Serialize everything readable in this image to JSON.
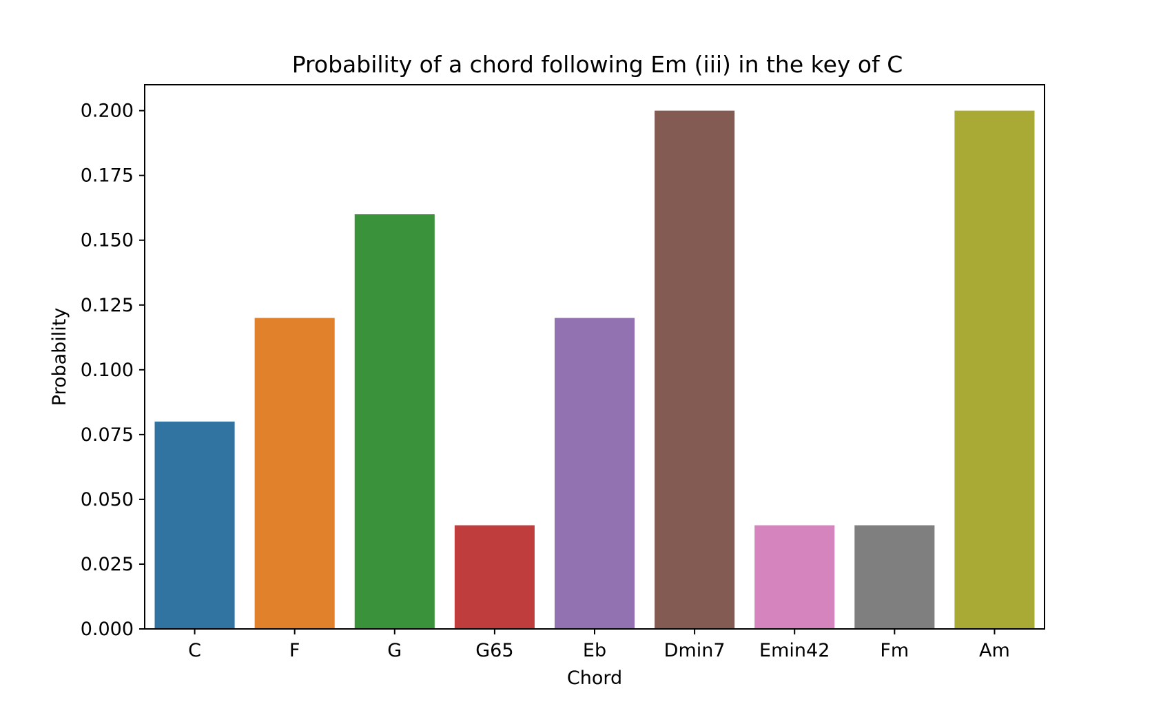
{
  "chart_data": {
    "type": "bar",
    "title": "Probability of a chord following Em (iii) in the key of C",
    "xlabel": "Chord",
    "ylabel": "Probability",
    "categories": [
      "C",
      "F",
      "G",
      "G65",
      "Eb",
      "Dmin7",
      "Emin42",
      "Fm",
      "Am"
    ],
    "values": [
      0.08,
      0.12,
      0.16,
      0.04,
      0.12,
      0.2,
      0.04,
      0.04,
      0.2
    ],
    "colors": [
      "#3274a1",
      "#e1812c",
      "#3a923a",
      "#c03d3e",
      "#9372b2",
      "#845b53",
      "#d684bd",
      "#7f7f7f",
      "#a9aa35"
    ],
    "ylim": [
      0,
      0.21
    ],
    "yticks": [
      0.0,
      0.025,
      0.05,
      0.075,
      0.1,
      0.125,
      0.15,
      0.175,
      0.2
    ],
    "ytick_labels": [
      "0.000",
      "0.025",
      "0.050",
      "0.075",
      "0.100",
      "0.125",
      "0.150",
      "0.175",
      "0.200"
    ],
    "grid": false,
    "legend": "none"
  }
}
